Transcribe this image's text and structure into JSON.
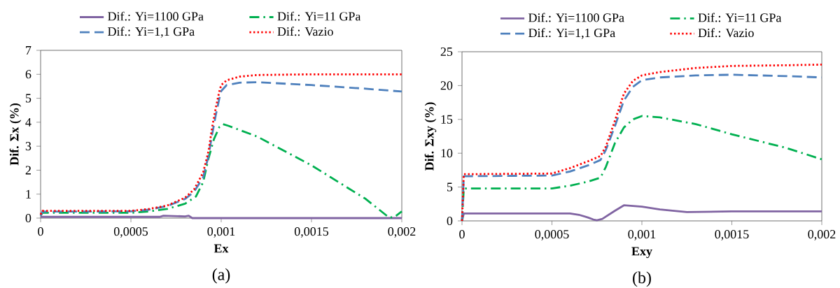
{
  "chart_data": [
    {
      "type": "line",
      "xlabel": "Ex",
      "ylabel": "Dif. Σx (%)",
      "annotations": [
        "(a)"
      ],
      "legend": "top",
      "grid": false,
      "xlim": [
        0,
        0.002
      ],
      "ylim": [
        0,
        7
      ],
      "xticks": [
        0,
        {
          "value": 0.0005,
          "label": "0,0005"
        },
        {
          "value": 0.001,
          "label": "0,001"
        },
        {
          "value": 0.0015,
          "label": "0,0015"
        },
        {
          "value": 0.002,
          "label": "0,002"
        }
      ],
      "yticks": [
        0,
        1,
        2,
        3,
        4,
        5,
        6,
        7
      ],
      "series": [
        {
          "name": "Dif.: Yi=1100 GPa",
          "color": "#8064a2",
          "line_style": "solid",
          "x": [
            0,
            0.00066,
            0.00068,
            0.0008,
            0.00082,
            0.00084,
            0.002
          ],
          "values": [
            0.05,
            0.05,
            0.1,
            0.07,
            0.1,
            0,
            0
          ]
        },
        {
          "name": "Dif.: Yi=11 GPa",
          "color": "#00b050",
          "line_style": "dashdot",
          "x": [
            0,
            1e-05,
            0.0005,
            0.0006,
            0.0007,
            0.0008,
            0.00086,
            0.0009,
            0.00093,
            0.00096,
            0.00099,
            0.00101,
            0.00104,
            0.0012,
            0.0015,
            0.0018,
            0.00193,
            0.00196,
            0.002
          ],
          "values": [
            0.1,
            0.22,
            0.22,
            0.28,
            0.38,
            0.6,
            0.9,
            1.5,
            2.5,
            3.3,
            3.8,
            3.92,
            3.85,
            3.4,
            2.2,
            0.8,
            0.02,
            0.05,
            0.28
          ]
        },
        {
          "name": "Dif.: Yi=1,1 GPa",
          "color": "#4f81bd",
          "line_style": "dashed",
          "x": [
            0,
            1e-05,
            0.0005,
            0.0006,
            0.0007,
            0.0008,
            0.00085,
            0.0009,
            0.00093,
            0.00095,
            0.00097,
            0.00099,
            0.001,
            0.00103,
            0.0011,
            0.0012,
            0.0015,
            0.0018,
            0.002
          ],
          "values": [
            0.1,
            0.27,
            0.28,
            0.35,
            0.5,
            0.8,
            1.1,
            1.7,
            2.6,
            3.5,
            4.3,
            5.0,
            5.3,
            5.55,
            5.65,
            5.67,
            5.55,
            5.4,
            5.28
          ]
        },
        {
          "name": "Dif.: Vazio",
          "color": "#ff0000",
          "line_style": "dotted",
          "x": [
            0,
            1e-05,
            0.0005,
            0.0006,
            0.0007,
            0.0008,
            0.00085,
            0.0009,
            0.00093,
            0.00095,
            0.00097,
            0.00099,
            0.001,
            0.00103,
            0.0011,
            0.0012,
            0.0015,
            0.002
          ],
          "values": [
            0.15,
            0.3,
            0.3,
            0.38,
            0.52,
            0.85,
            1.2,
            1.9,
            2.8,
            3.8,
            4.6,
            5.3,
            5.55,
            5.75,
            5.9,
            5.97,
            6.0,
            6.0
          ]
        }
      ]
    },
    {
      "type": "line",
      "xlabel": "Exy",
      "ylabel": "Dif. Σxy (%)",
      "annotations": [
        "(b)"
      ],
      "legend": "top",
      "grid": false,
      "xlim": [
        0,
        0.002
      ],
      "ylim": [
        0,
        25
      ],
      "xticks": [
        0,
        {
          "value": 0.0005,
          "label": "0,0005"
        },
        {
          "value": 0.001,
          "label": "0,001"
        },
        {
          "value": 0.0015,
          "label": "0,0015"
        },
        {
          "value": 0.002,
          "label": "0,002"
        }
      ],
      "yticks": [
        0,
        5,
        10,
        15,
        20,
        25
      ],
      "series": [
        {
          "name": "Dif.: Yi=1100 GPa",
          "color": "#8064a2",
          "line_style": "solid",
          "x": [
            0,
            1e-05,
            0.0006,
            0.00065,
            0.0007,
            0.00073,
            0.00075,
            0.00078,
            0.00085,
            0.0009,
            0.001,
            0.0011,
            0.00125,
            0.0015,
            0.002
          ],
          "values": [
            0,
            1.1,
            1.1,
            0.9,
            0.5,
            0.2,
            0.1,
            0.3,
            1.5,
            2.3,
            2.1,
            1.7,
            1.3,
            1.4,
            1.4
          ]
        },
        {
          "name": "Dif.: Yi=11 GPa",
          "color": "#00b050",
          "line_style": "dashdot",
          "x": [
            0,
            1e-05,
            0.0005,
            0.0006,
            0.0007,
            0.00077,
            0.0008,
            0.00085,
            0.0009,
            0.00095,
            0.001,
            0.0011,
            0.0013,
            0.0015,
            0.0018,
            0.002
          ],
          "values": [
            0,
            4.8,
            4.8,
            5.2,
            5.8,
            6.4,
            8,
            11.5,
            13.8,
            15,
            15.5,
            15.3,
            14.3,
            12.8,
            10.8,
            9.1
          ]
        },
        {
          "name": "Dif.: Yi=1,1 GPa",
          "color": "#4f81bd",
          "line_style": "dashed",
          "x": [
            0,
            1e-05,
            0.0005,
            0.0006,
            0.0007,
            0.00077,
            0.0008,
            0.00085,
            0.0009,
            0.00095,
            0.001,
            0.0011,
            0.0013,
            0.0015,
            0.0018,
            0.002
          ],
          "values": [
            0,
            6.6,
            6.7,
            7.3,
            8.2,
            9,
            10.5,
            14,
            17.8,
            19.8,
            20.8,
            21.2,
            21.5,
            21.6,
            21.4,
            21.2
          ]
        },
        {
          "name": "Dif.: Vazio",
          "color": "#ff0000",
          "line_style": "dotted",
          "x": [
            0,
            1e-05,
            0.0005,
            0.0006,
            0.0007,
            0.00077,
            0.0008,
            0.00085,
            0.0009,
            0.00095,
            0.001,
            0.0011,
            0.0013,
            0.0015,
            0.0018,
            0.002
          ],
          "values": [
            0,
            6.9,
            7.0,
            7.8,
            8.8,
            9.6,
            11,
            14.8,
            18.8,
            20.7,
            21.5,
            22,
            22.6,
            22.9,
            23.0,
            23.1
          ]
        }
      ]
    }
  ]
}
